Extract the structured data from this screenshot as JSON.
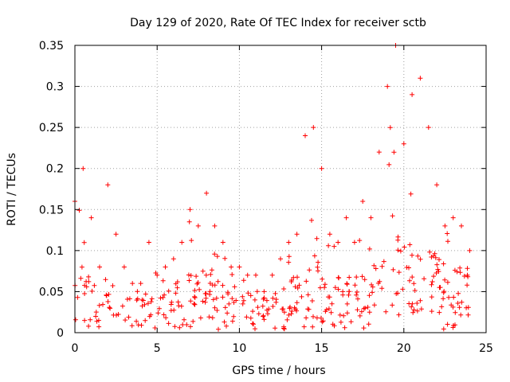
{
  "chart_data": {
    "type": "scatter",
    "title": "Day 129 of 2020, Rate Of TEC Index for receiver sctb",
    "xlabel": "GPS time / hours",
    "ylabel": "ROTI / TECUs",
    "xlim": [
      0,
      25
    ],
    "ylim": [
      0,
      0.35
    ],
    "xticks": [
      0,
      5,
      10,
      15,
      20,
      25
    ],
    "xtick_labels": [
      "0",
      "5",
      "10",
      "15",
      "20",
      "25"
    ],
    "yticks": [
      0,
      0.05,
      0.1,
      0.15,
      0.2,
      0.25,
      0.3,
      0.35
    ],
    "ytick_labels": [
      "0",
      "0.05",
      "0.1",
      "0.15",
      "0.2",
      "0.25",
      "0.3",
      "0.35"
    ],
    "grid": true,
    "marker": "plus",
    "color": "#ff0000",
    "data_range_hours": [
      0,
      24
    ],
    "envelope_hours": [
      0,
      0.5,
      1,
      1.5,
      2,
      2.5,
      3,
      3.5,
      4,
      4.5,
      5,
      5.5,
      6,
      6.5,
      7,
      7.5,
      8,
      8.5,
      9,
      9.5,
      10,
      10.5,
      11,
      11.5,
      12,
      12.5,
      13,
      13.5,
      14,
      14.5,
      15,
      15.5,
      16,
      16.5,
      17,
      17.5,
      18,
      18.5,
      19,
      19.5,
      20,
      20.5,
      21,
      21.5,
      22,
      22.5,
      23,
      23.5,
      24
    ],
    "envelope_max": [
      0.16,
      0.2,
      0.14,
      0.08,
      0.18,
      0.12,
      0.08,
      0.06,
      0.06,
      0.11,
      0.07,
      0.08,
      0.09,
      0.11,
      0.15,
      0.13,
      0.17,
      0.13,
      0.11,
      0.08,
      0.08,
      0.07,
      0.07,
      0.05,
      0.07,
      0.09,
      0.11,
      0.12,
      0.24,
      0.25,
      0.2,
      0.12,
      0.11,
      0.14,
      0.11,
      0.16,
      0.14,
      0.22,
      0.3,
      0.35,
      0.23,
      0.29,
      0.31,
      0.25,
      0.18,
      0.13,
      0.14,
      0.13,
      0.1
    ],
    "envelope_typical": [
      0.05,
      0.06,
      0.05,
      0.04,
      0.05,
      0.05,
      0.04,
      0.03,
      0.03,
      0.04,
      0.04,
      0.04,
      0.04,
      0.05,
      0.06,
      0.06,
      0.06,
      0.06,
      0.05,
      0.04,
      0.04,
      0.035,
      0.03,
      0.03,
      0.035,
      0.04,
      0.045,
      0.05,
      0.06,
      0.07,
      0.065,
      0.05,
      0.05,
      0.05,
      0.05,
      0.06,
      0.06,
      0.07,
      0.08,
      0.09,
      0.08,
      0.08,
      0.08,
      0.08,
      0.07,
      0.06,
      0.06,
      0.06,
      0.05
    ]
  }
}
